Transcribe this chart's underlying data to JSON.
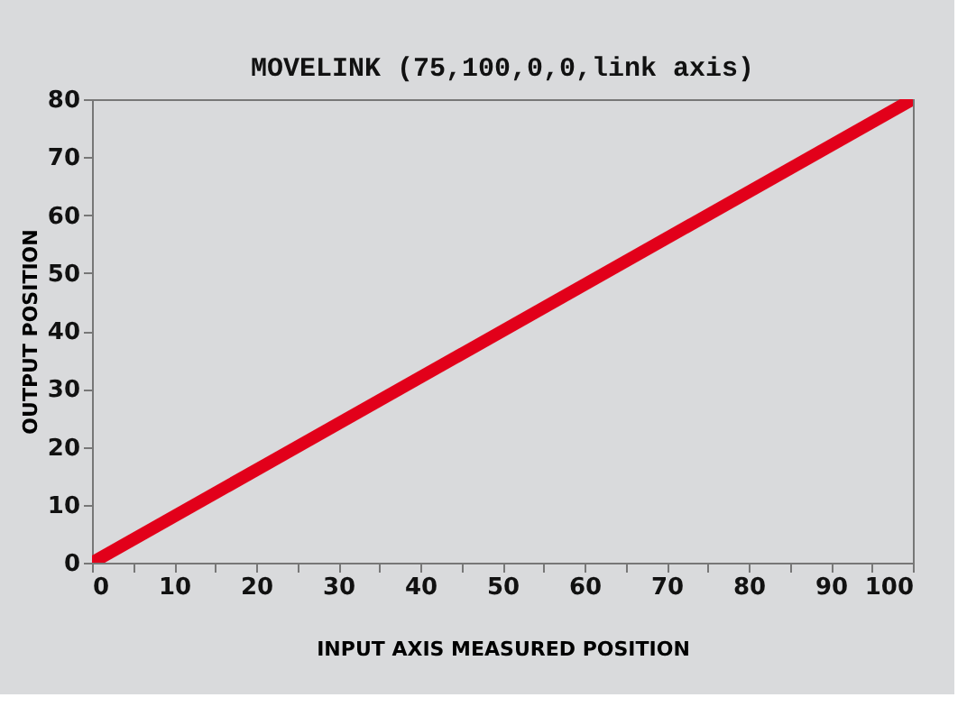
{
  "chart_data": {
    "type": "line",
    "title": "MOVELINK (75,100,0,0,link axis)",
    "xlabel": "INPUT AXIS MEASURED POSITION",
    "ylabel": "OUTPUT POSITION",
    "x": [
      0,
      100
    ],
    "series": [
      {
        "color": "#e2001a",
        "values": [
          0,
          80
        ]
      }
    ],
    "xlim": [
      0,
      100
    ],
    "ylim": [
      0,
      80
    ],
    "xticks": [
      0,
      {
        "value": 5,
        "label": null
      },
      10,
      {
        "value": 15,
        "label": null
      },
      20,
      {
        "value": 25,
        "label": null
      },
      30,
      {
        "value": 35,
        "label": null
      },
      40,
      {
        "value": 45,
        "label": null
      },
      50,
      {
        "value": 55,
        "label": null
      },
      60,
      {
        "value": 65,
        "label": null
      },
      70,
      {
        "value": 75,
        "label": null
      },
      80,
      {
        "value": 85,
        "label": null
      },
      90,
      {
        "value": 95,
        "label": null
      },
      100
    ],
    "yticks": [
      0,
      10,
      20,
      30,
      40,
      50,
      60,
      70,
      80
    ],
    "grid": false,
    "line_style": "solid"
  }
}
